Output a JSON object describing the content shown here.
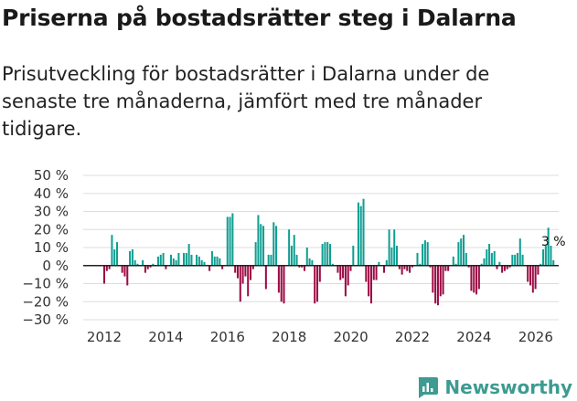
{
  "title": "Priserna på bostadsrätter steg i Dalarna",
  "subtitle": "Prisutveckling för bostadsrätter i Dalarna under de senaste tre månaderna, jämfört med tre månader tidigare.",
  "brand": {
    "name": "Newsworthy",
    "icon": "newsworthy-logo-icon"
  },
  "colors": {
    "positive": "#0f9e92",
    "negative": "#9b0a43",
    "grid": "#dddddd",
    "zero": "#222222"
  },
  "chart_data": {
    "type": "bar",
    "title": "Priserna på bostadsrätter steg i Dalarna",
    "xlabel": "",
    "ylabel": "",
    "ylim": [
      -30,
      50
    ],
    "yticks": [
      -30,
      -20,
      -10,
      0,
      10,
      20,
      30,
      40,
      50
    ],
    "ytick_labels": [
      "−30 %",
      "−20 %",
      "−10 %",
      "0 %",
      "10 %",
      "20 %",
      "30 %",
      "40 %",
      "50 %"
    ],
    "xticks": [
      2012,
      2014,
      2016,
      2018,
      2020,
      2022,
      2024,
      2026
    ],
    "xtick_labels": [
      "2012",
      "2014",
      "2016",
      "2018",
      "2020",
      "2022",
      "2024",
      "2026"
    ],
    "x_start": 2012.0,
    "x_step": 0.0833,
    "values": [
      -10,
      -3,
      -2,
      17,
      9,
      13,
      0,
      -4,
      -6,
      -11,
      8,
      9,
      3,
      1,
      0,
      3,
      -4,
      -2,
      -1,
      1,
      0,
      5,
      6,
      7,
      -2,
      0,
      6,
      4,
      3,
      7,
      0,
      7,
      7,
      12,
      6,
      0,
      6,
      5,
      3,
      2,
      0,
      -3,
      8,
      5,
      5,
      4,
      -2,
      0,
      27,
      27,
      29,
      -4,
      -7,
      -20,
      -10,
      -6,
      -17,
      -8,
      -2,
      13,
      28,
      23,
      22,
      -13,
      6,
      6,
      24,
      22,
      -15,
      -20,
      -21,
      0,
      20,
      11,
      17,
      6,
      -1,
      -1,
      -3,
      10,
      4,
      3,
      -21,
      -20,
      -9,
      12,
      13,
      13,
      12,
      1,
      0,
      -4,
      -8,
      -7,
      -17,
      -11,
      -3,
      11,
      0,
      35,
      33,
      37,
      -9,
      -17,
      -21,
      -8,
      -8,
      2,
      0,
      -4,
      3,
      20,
      10,
      20,
      11,
      -2,
      -5,
      -2,
      -3,
      -4,
      -1,
      0,
      7,
      1,
      12,
      14,
      13,
      -1,
      -15,
      -21,
      -22,
      -17,
      -16,
      -3,
      -3,
      0,
      5,
      1,
      13,
      15,
      17,
      7,
      -1,
      -14,
      -15,
      -16,
      -13,
      1,
      4,
      9,
      12,
      7,
      8,
      -2,
      2,
      -4,
      -3,
      -2,
      -1,
      6,
      6,
      7,
      15,
      6,
      0,
      -9,
      -11,
      -15,
      -13,
      -5,
      1,
      9,
      11,
      21,
      11,
      3
    ],
    "annotation": {
      "text": "3 %",
      "value": 3,
      "position": "last-bar"
    }
  }
}
